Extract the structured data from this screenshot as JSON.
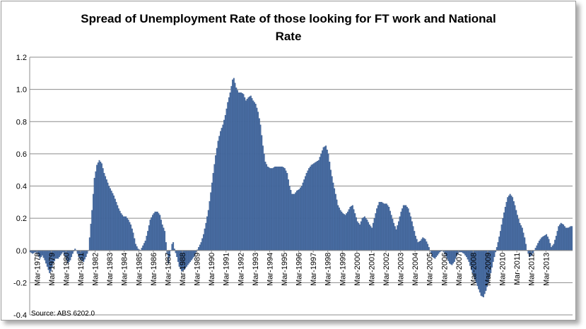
{
  "chart_data": {
    "type": "bar",
    "title_line1": "Spread of Unemployment Rate of those looking for FT work and National",
    "title_line2": "Rate",
    "xlabel": "",
    "ylabel": "",
    "ylim": [
      -0.4,
      1.2
    ],
    "yticks": [
      "-0.4",
      "-0.2",
      "0.0",
      "0.2",
      "0.4",
      "0.6",
      "0.8",
      "1.0",
      "1.2"
    ],
    "xtick_labels": [
      "Mar-1978",
      "Mar-1979",
      "Mar-1980",
      "Mar-1981",
      "Mar-1982",
      "Mar-1983",
      "Mar-1984",
      "Mar-1985",
      "Mar-1986",
      "Mar-1987",
      "Mar-1988",
      "Mar-1989",
      "Mar-1990",
      "Mar-1991",
      "Mar-1992",
      "Mar-1993",
      "Mar-1994",
      "Mar-1995",
      "Mar-1996",
      "Mar-1997",
      "Mar-1998",
      "Mar-1999",
      "Mar-2000",
      "Mar-2001",
      "Mar-2002",
      "Mar-2003",
      "Mar-2004",
      "Mar-2005",
      "Mar-2006",
      "Mar-2007",
      "Mar-2008",
      "Mar-2009",
      "Mar-2010",
      "Mar-2011",
      "Mar-2012",
      "Mar-2013"
    ],
    "grid": true,
    "bar_color": "#4a6fa5",
    "series_keypoints": [
      [
        0,
        -0.01
      ],
      [
        2,
        -0.02
      ],
      [
        4,
        -0.01
      ],
      [
        6,
        -0.02
      ],
      [
        8,
        -0.05
      ],
      [
        10,
        -0.03
      ],
      [
        12,
        -0.06
      ],
      [
        14,
        -0.1
      ],
      [
        16,
        -0.14
      ],
      [
        17,
        -0.13
      ],
      [
        19,
        -0.08
      ],
      [
        21,
        -0.05
      ],
      [
        23,
        -0.05
      ],
      [
        25,
        -0.03
      ],
      [
        27,
        -0.01
      ],
      [
        29,
        -0.04
      ],
      [
        31,
        -0.08
      ],
      [
        33,
        -0.06
      ],
      [
        35,
        -0.02
      ],
      [
        37,
        0.01
      ],
      [
        38,
        0.0
      ],
      [
        40,
        -0.04
      ],
      [
        42,
        -0.06
      ],
      [
        44,
        -0.07
      ],
      [
        46,
        -0.04
      ],
      [
        48,
        0.0
      ],
      [
        49,
        0.08
      ],
      [
        51,
        0.25
      ],
      [
        53,
        0.45
      ],
      [
        55,
        0.53
      ],
      [
        57,
        0.56
      ],
      [
        59,
        0.54
      ],
      [
        61,
        0.48
      ],
      [
        63,
        0.44
      ],
      [
        65,
        0.4
      ],
      [
        67,
        0.37
      ],
      [
        69,
        0.34
      ],
      [
        71,
        0.3
      ],
      [
        73,
        0.26
      ],
      [
        75,
        0.23
      ],
      [
        77,
        0.21
      ],
      [
        79,
        0.21
      ],
      [
        81,
        0.19
      ],
      [
        83,
        0.16
      ],
      [
        85,
        0.11
      ],
      [
        87,
        0.04
      ],
      [
        89,
        0.01
      ],
      [
        91,
        0.0
      ],
      [
        93,
        0.03
      ],
      [
        95,
        0.06
      ],
      [
        97,
        0.12
      ],
      [
        99,
        0.19
      ],
      [
        101,
        0.22
      ],
      [
        103,
        0.24
      ],
      [
        105,
        0.24
      ],
      [
        107,
        0.22
      ],
      [
        109,
        0.16
      ],
      [
        111,
        0.12
      ],
      [
        113,
        -0.02
      ],
      [
        114,
        -0.08
      ],
      [
        115,
        -0.04
      ],
      [
        117,
        0.04
      ],
      [
        118,
        0.05
      ],
      [
        119,
        0.01
      ],
      [
        121,
        -0.04
      ],
      [
        123,
        -0.1
      ],
      [
        125,
        -0.13
      ],
      [
        127,
        -0.12
      ],
      [
        129,
        -0.1
      ],
      [
        131,
        -0.08
      ],
      [
        133,
        -0.06
      ],
      [
        135,
        -0.04
      ],
      [
        137,
        -0.01
      ],
      [
        139,
        0.02
      ],
      [
        141,
        0.05
      ],
      [
        143,
        0.1
      ],
      [
        145,
        0.17
      ],
      [
        147,
        0.25
      ],
      [
        149,
        0.36
      ],
      [
        151,
        0.48
      ],
      [
        153,
        0.59
      ],
      [
        155,
        0.68
      ],
      [
        157,
        0.74
      ],
      [
        159,
        0.78
      ],
      [
        161,
        0.84
      ],
      [
        163,
        0.92
      ],
      [
        165,
        0.98
      ],
      [
        167,
        1.06
      ],
      [
        168,
        1.07
      ],
      [
        170,
        1.01
      ],
      [
        172,
        0.98
      ],
      [
        174,
        0.98
      ],
      [
        176,
        0.97
      ],
      [
        178,
        0.93
      ],
      [
        180,
        0.95
      ],
      [
        182,
        0.96
      ],
      [
        184,
        0.93
      ],
      [
        186,
        0.91
      ],
      [
        188,
        0.86
      ],
      [
        190,
        0.78
      ],
      [
        192,
        0.65
      ],
      [
        194,
        0.55
      ],
      [
        196,
        0.52
      ],
      [
        198,
        0.51
      ],
      [
        200,
        0.51
      ],
      [
        202,
        0.52
      ],
      [
        204,
        0.52
      ],
      [
        206,
        0.52
      ],
      [
        208,
        0.52
      ],
      [
        210,
        0.51
      ],
      [
        212,
        0.48
      ],
      [
        214,
        0.4
      ],
      [
        216,
        0.35
      ],
      [
        218,
        0.35
      ],
      [
        220,
        0.37
      ],
      [
        222,
        0.38
      ],
      [
        224,
        0.4
      ],
      [
        226,
        0.44
      ],
      [
        228,
        0.48
      ],
      [
        230,
        0.51
      ],
      [
        232,
        0.53
      ],
      [
        234,
        0.54
      ],
      [
        236,
        0.55
      ],
      [
        238,
        0.56
      ],
      [
        240,
        0.6
      ],
      [
        242,
        0.64
      ],
      [
        244,
        0.65
      ],
      [
        246,
        0.6
      ],
      [
        248,
        0.5
      ],
      [
        250,
        0.42
      ],
      [
        252,
        0.35
      ],
      [
        254,
        0.28
      ],
      [
        256,
        0.25
      ],
      [
        258,
        0.23
      ],
      [
        260,
        0.22
      ],
      [
        262,
        0.24
      ],
      [
        264,
        0.27
      ],
      [
        266,
        0.28
      ],
      [
        268,
        0.23
      ],
      [
        270,
        0.18
      ],
      [
        272,
        0.16
      ],
      [
        274,
        0.2
      ],
      [
        276,
        0.21
      ],
      [
        278,
        0.19
      ],
      [
        280,
        0.16
      ],
      [
        282,
        0.14
      ],
      [
        284,
        0.2
      ],
      [
        286,
        0.26
      ],
      [
        288,
        0.3
      ],
      [
        290,
        0.3
      ],
      [
        292,
        0.29
      ],
      [
        294,
        0.29
      ],
      [
        296,
        0.27
      ],
      [
        298,
        0.22
      ],
      [
        300,
        0.17
      ],
      [
        302,
        0.13
      ],
      [
        304,
        0.18
      ],
      [
        306,
        0.24
      ],
      [
        308,
        0.28
      ],
      [
        310,
        0.28
      ],
      [
        312,
        0.26
      ],
      [
        314,
        0.21
      ],
      [
        316,
        0.15
      ],
      [
        318,
        0.09
      ],
      [
        320,
        0.05
      ],
      [
        322,
        0.06
      ],
      [
        324,
        0.08
      ],
      [
        326,
        0.07
      ],
      [
        328,
        0.04
      ],
      [
        330,
        0.0
      ],
      [
        332,
        -0.04
      ],
      [
        334,
        -0.05
      ],
      [
        336,
        -0.03
      ],
      [
        338,
        -0.01
      ],
      [
        340,
        0.0
      ],
      [
        342,
        -0.02
      ],
      [
        344,
        -0.05
      ],
      [
        346,
        -0.08
      ],
      [
        348,
        -0.09
      ],
      [
        350,
        -0.07
      ],
      [
        352,
        -0.03
      ],
      [
        354,
        -0.01
      ],
      [
        356,
        -0.01
      ],
      [
        358,
        -0.02
      ],
      [
        360,
        -0.04
      ],
      [
        362,
        -0.07
      ],
      [
        364,
        -0.12
      ],
      [
        366,
        -0.16
      ],
      [
        368,
        -0.2
      ],
      [
        370,
        -0.24
      ],
      [
        372,
        -0.28
      ],
      [
        374,
        -0.29
      ],
      [
        376,
        -0.25
      ],
      [
        378,
        -0.2
      ],
      [
        380,
        -0.14
      ],
      [
        382,
        -0.07
      ],
      [
        384,
        -0.01
      ],
      [
        386,
        0.05
      ],
      [
        388,
        0.12
      ],
      [
        390,
        0.2
      ],
      [
        392,
        0.27
      ],
      [
        394,
        0.33
      ],
      [
        396,
        0.35
      ],
      [
        398,
        0.33
      ],
      [
        400,
        0.28
      ],
      [
        402,
        0.22
      ],
      [
        404,
        0.17
      ],
      [
        406,
        0.14
      ],
      [
        408,
        0.08
      ],
      [
        410,
        0.0
      ],
      [
        412,
        -0.04
      ],
      [
        414,
        -0.03
      ],
      [
        416,
        0.0
      ],
      [
        418,
        0.03
      ],
      [
        420,
        0.06
      ],
      [
        422,
        0.08
      ],
      [
        424,
        0.09
      ],
      [
        426,
        0.1
      ],
      [
        428,
        0.07
      ],
      [
        430,
        0.02
      ],
      [
        432,
        0.04
      ],
      [
        434,
        0.09
      ],
      [
        436,
        0.15
      ],
      [
        438,
        0.17
      ],
      [
        440,
        0.16
      ],
      [
        442,
        0.14
      ],
      [
        444,
        0.14
      ],
      [
        446,
        0.15
      ],
      [
        447,
        0.15
      ]
    ],
    "n_months": 448,
    "source": "Source: ABS 6202.0"
  }
}
